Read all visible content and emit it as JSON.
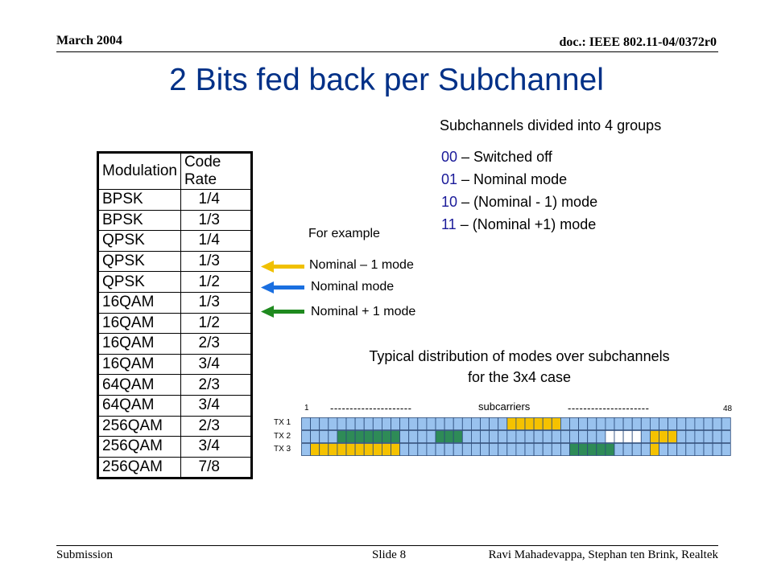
{
  "header": {
    "date": "March 2004",
    "doc": "doc.: IEEE 802.11-04/0372r0"
  },
  "title": "2 Bits fed back per Subchannel",
  "groups": {
    "title": "Subchannels divided into 4 groups",
    "codes": [
      {
        "code": "00",
        "sep": " – ",
        "desc": "Switched off"
      },
      {
        "code": "01",
        "sep": " – ",
        "desc": "Nominal mode"
      },
      {
        "code": "10",
        "sep": " – ",
        "desc": "(Nominal - 1) mode"
      },
      {
        "code": "11",
        "sep": " – ",
        "desc": "(Nominal +1) mode"
      }
    ]
  },
  "table": {
    "headers": [
      "Modulation",
      "Code Rate"
    ],
    "rows": [
      [
        "BPSK",
        "1/4"
      ],
      [
        "BPSK",
        "1/3"
      ],
      [
        "QPSK",
        "1/4"
      ],
      [
        "QPSK",
        "1/3"
      ],
      [
        "QPSK",
        "1/2"
      ],
      [
        "16QAM",
        "1/3"
      ],
      [
        "16QAM",
        "1/2"
      ],
      [
        "16QAM",
        "2/3"
      ],
      [
        "16QAM",
        "3/4"
      ],
      [
        "64QAM",
        "2/3"
      ],
      [
        "64QAM",
        "3/4"
      ],
      [
        "256QAM",
        "2/3"
      ],
      [
        "256QAM",
        "3/4"
      ],
      [
        "256QAM",
        "7/8"
      ]
    ]
  },
  "example": {
    "label": "For example",
    "legend": [
      {
        "label": "Nominal – 1 mode",
        "color": "#f0c000"
      },
      {
        "label": "Nominal mode",
        "color": "#1a6fe0"
      },
      {
        "label": "Nominal + 1 mode",
        "color": "#1f8a1f"
      }
    ]
  },
  "distribution": {
    "title_line1": "Typical distribution of modes over subchannels",
    "title_line2": "for the 3x4 case",
    "axis_start": "1",
    "axis_end": "48",
    "axis_label": "subcarriers",
    "dashes_left": "---------------------",
    "dashes_right": "---------------------",
    "rows": [
      {
        "label": "TX 1",
        "cells": "111111111111111111111113333331111111111111111111"
      },
      {
        "label": "TX 2",
        "cells": "111144444441111444111111111111111100001333111111"
      },
      {
        "label": "TX 3",
        "cells": "133333333331111111111111111111444441111311111111"
      }
    ],
    "cell_colors": {
      "0": "#ffffff",
      "1": "#99c2ee",
      "3": "#f5c200",
      "4": "#2e8b57"
    }
  },
  "footer": {
    "left": "Submission",
    "center": "Slide 8",
    "right": "Ravi Mahadevappa, Stephan ten Brink, Realtek"
  }
}
